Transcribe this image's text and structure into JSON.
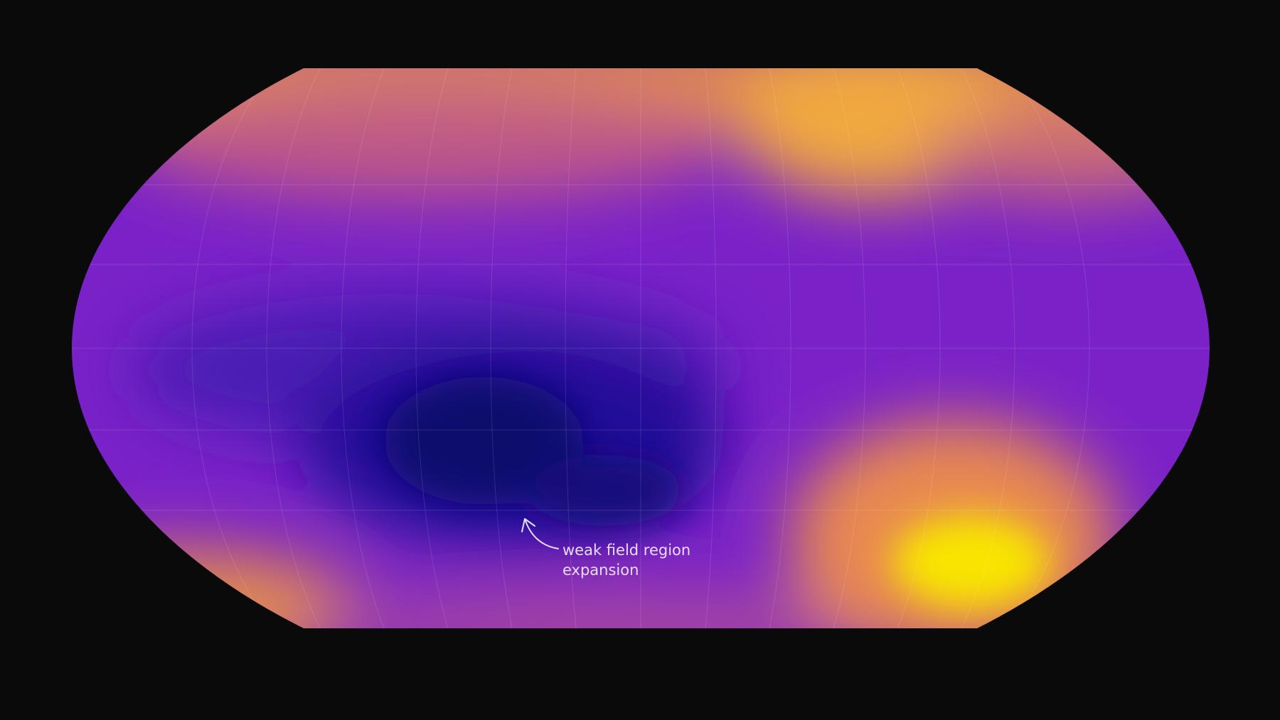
{
  "map": {
    "annotation": {
      "line1": "weak field region",
      "line2": "expansion"
    },
    "colors": {
      "background": "#0a0a0a",
      "weak_field": "#0b0a6e",
      "mid_field": "#7a22c8",
      "strong_field": "#f5e000",
      "high_field": "#e8954a"
    }
  }
}
